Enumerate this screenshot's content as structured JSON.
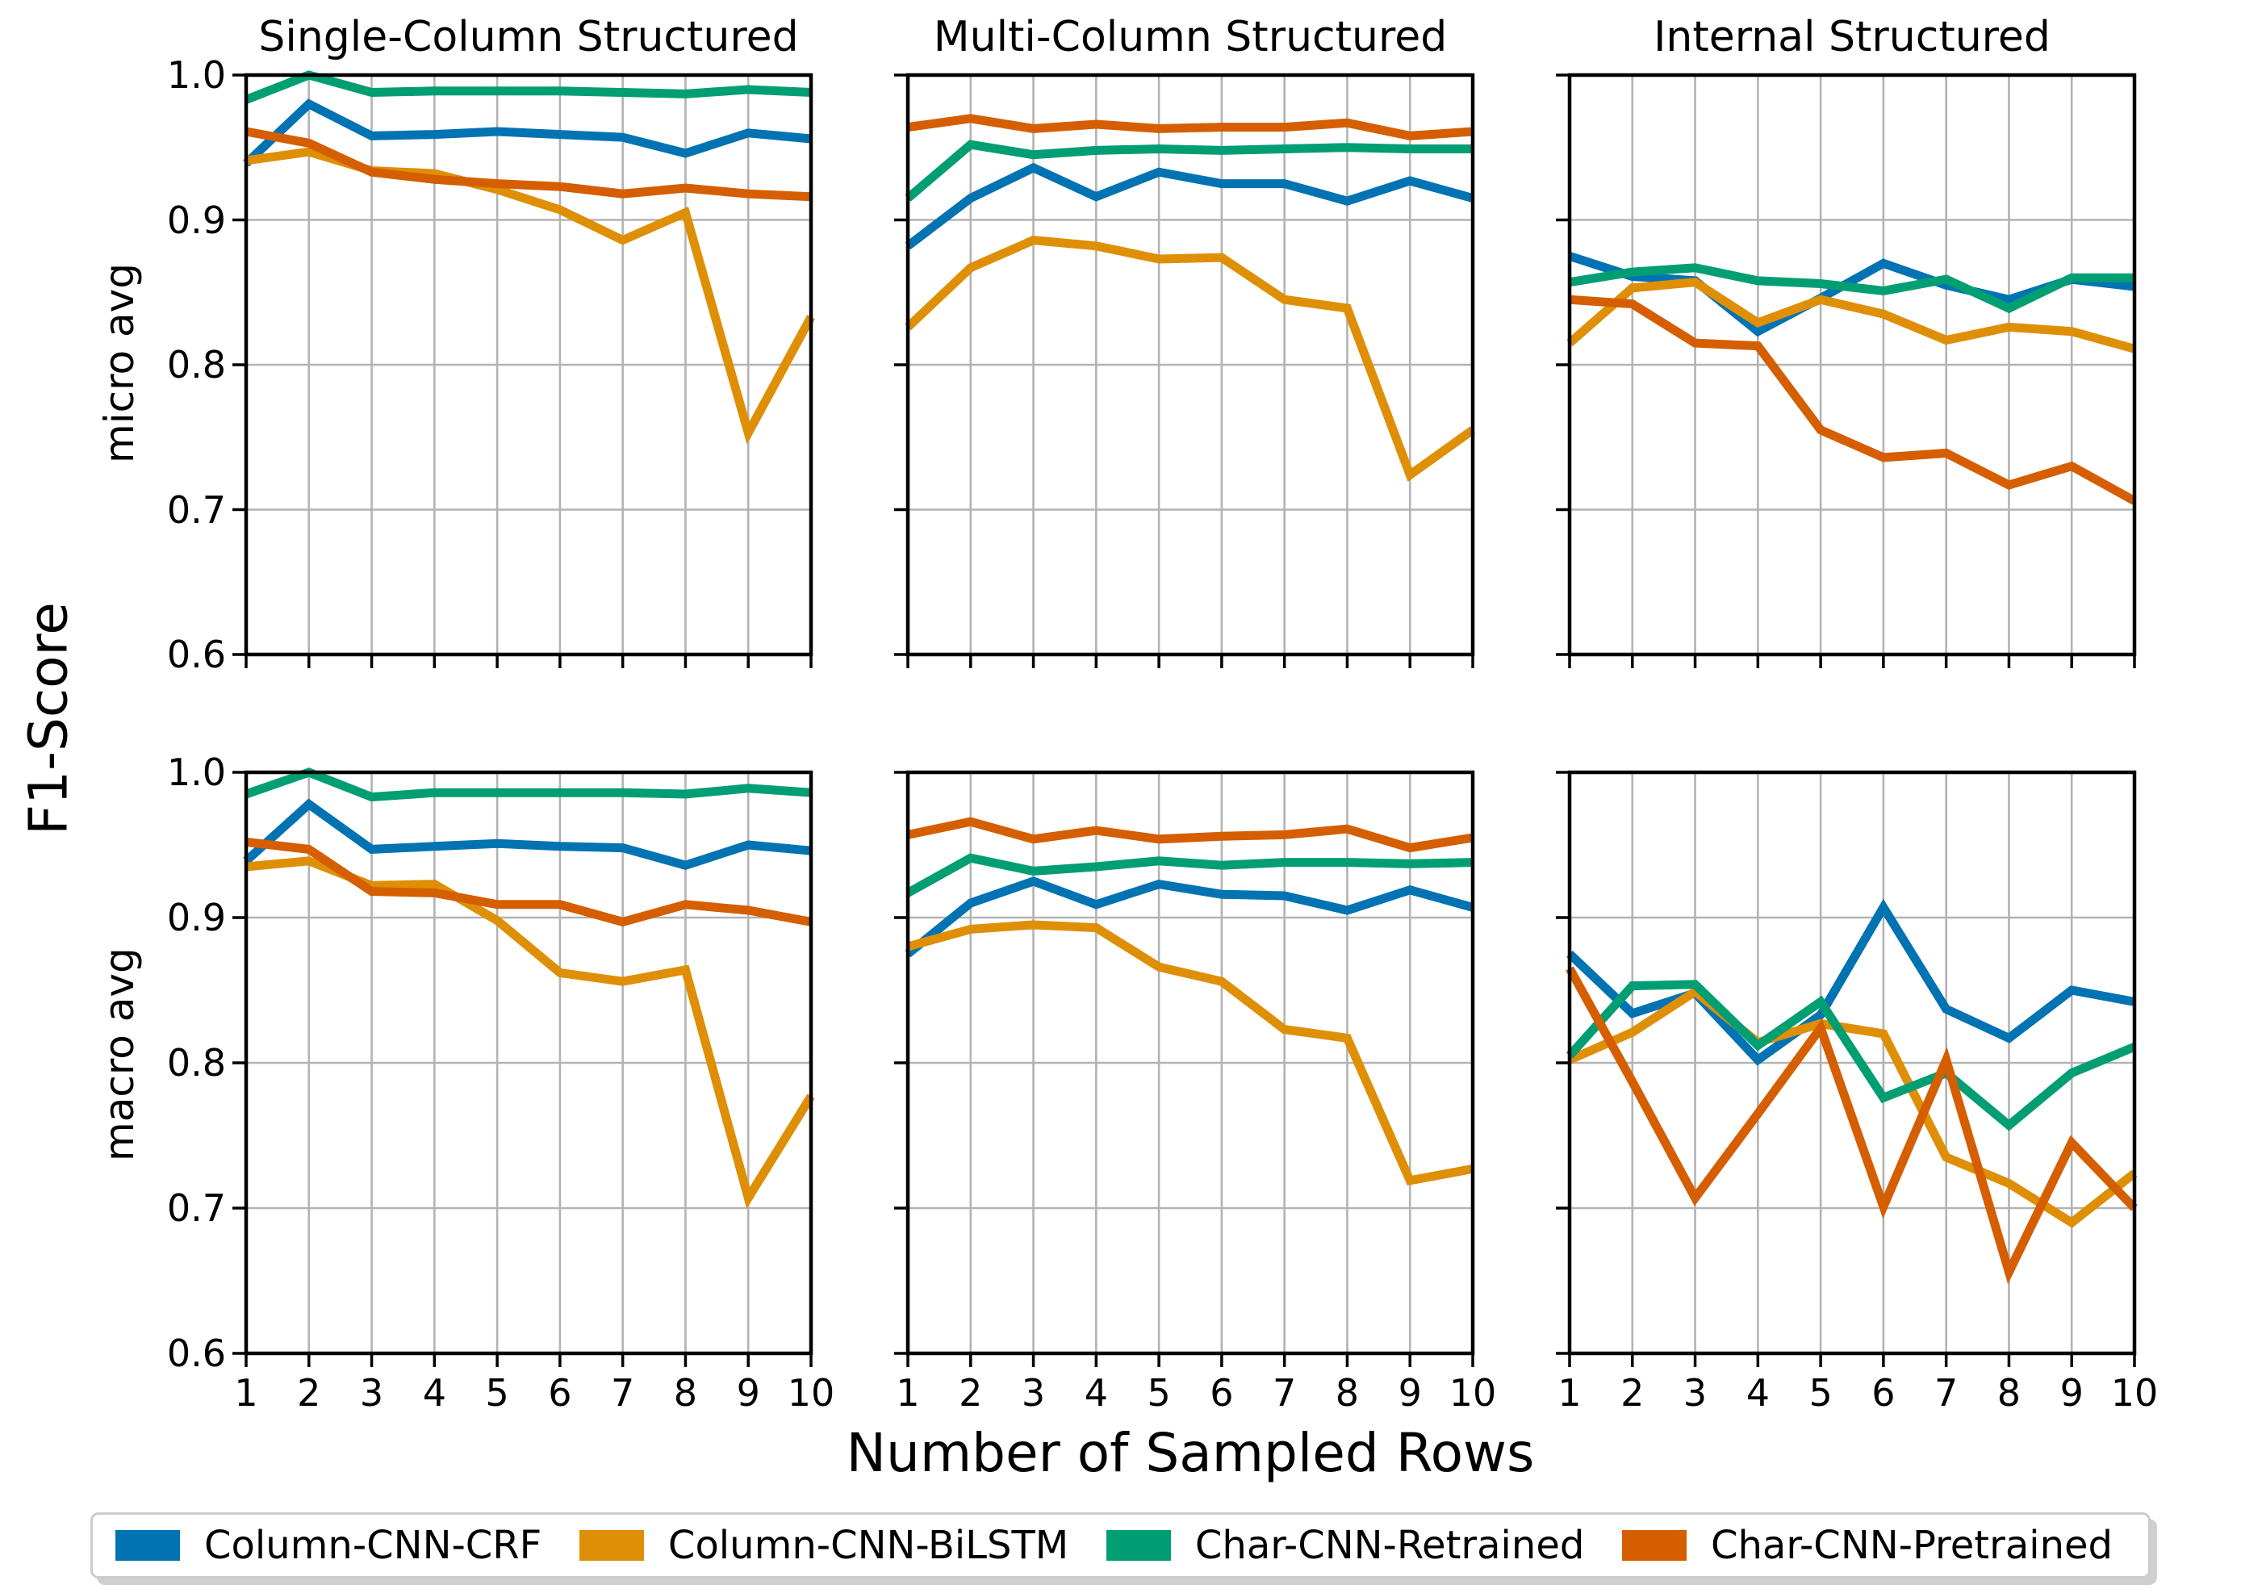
{
  "chart_data": {
    "type": "line",
    "col_titles": [
      "Single-Column Structured",
      "Multi-Column Structured",
      "Internal Structured"
    ],
    "row_labels": [
      "micro avg",
      "macro avg"
    ],
    "xlabel": "Number of Sampled Rows",
    "ylabel": "F1-Score",
    "x": [
      1,
      2,
      3,
      4,
      5,
      6,
      7,
      8,
      9,
      10
    ],
    "xtick_labels": [
      "1",
      "2",
      "3",
      "4",
      "5",
      "6",
      "7",
      "8",
      "9",
      "10"
    ],
    "ylim": [
      0.6,
      1.0
    ],
    "yticks": [
      1.0,
      0.9,
      0.8,
      0.7,
      0.6
    ],
    "ytick_labels": [
      "1.0",
      "0.9",
      "0.8",
      "0.7",
      "0.6"
    ],
    "grid": true,
    "legend_position": "bottom",
    "colors": {
      "grid": "#b3b3b3",
      "spine": "#000000",
      "background": "#ffffff",
      "legend_border": "#cccccc"
    },
    "series_meta": [
      {
        "name": "Column-CNN-CRF",
        "color": "#0173b2"
      },
      {
        "name": "Column-CNN-BiLSTM",
        "color": "#de8f05"
      },
      {
        "name": "Char-CNN-Retrained",
        "color": "#029e73"
      },
      {
        "name": "Char-CNN-Pretrained",
        "color": "#d55e00"
      }
    ],
    "subplots": [
      {
        "row": "micro avg",
        "col": "Single-Column Structured",
        "series": [
          {
            "name": "Column-CNN-CRF",
            "values": [
              0.939,
              0.98,
              0.958,
              0.959,
              0.961,
              0.959,
              0.957,
              0.946,
              0.96,
              0.956
            ]
          },
          {
            "name": "Column-CNN-BiLSTM",
            "values": [
              0.941,
              0.947,
              0.934,
              0.932,
              0.921,
              0.907,
              0.886,
              0.905,
              0.753,
              0.833
            ]
          },
          {
            "name": "Char-CNN-Retrained",
            "values": [
              0.983,
              1.0,
              0.988,
              0.989,
              0.989,
              0.989,
              0.988,
              0.987,
              0.99,
              0.988
            ]
          },
          {
            "name": "Char-CNN-Pretrained",
            "values": [
              0.961,
              0.953,
              0.933,
              0.928,
              0.925,
              0.923,
              0.918,
              0.922,
              0.918,
              0.916
            ]
          }
        ]
      },
      {
        "row": "micro avg",
        "col": "Multi-Column Structured",
        "series": [
          {
            "name": "Column-CNN-CRF",
            "values": [
              0.882,
              0.915,
              0.936,
              0.916,
              0.933,
              0.925,
              0.925,
              0.913,
              0.927,
              0.915
            ]
          },
          {
            "name": "Column-CNN-BiLSTM",
            "values": [
              0.826,
              0.867,
              0.886,
              0.882,
              0.873,
              0.874,
              0.845,
              0.839,
              0.724,
              0.755
            ]
          },
          {
            "name": "Char-CNN-Retrained",
            "values": [
              0.915,
              0.952,
              0.945,
              0.948,
              0.949,
              0.948,
              0.949,
              0.95,
              0.949,
              0.949
            ]
          },
          {
            "name": "Char-CNN-Pretrained",
            "values": [
              0.964,
              0.97,
              0.963,
              0.966,
              0.963,
              0.964,
              0.964,
              0.967,
              0.958,
              0.961
            ]
          }
        ]
      },
      {
        "row": "micro avg",
        "col": "Internal Structured",
        "series": [
          {
            "name": "Column-CNN-CRF",
            "values": [
              0.875,
              0.861,
              0.858,
              0.823,
              0.846,
              0.87,
              0.855,
              0.845,
              0.859,
              0.854
            ]
          },
          {
            "name": "Column-CNN-BiLSTM",
            "values": [
              0.815,
              0.853,
              0.857,
              0.829,
              0.845,
              0.835,
              0.817,
              0.826,
              0.823,
              0.811
            ]
          },
          {
            "name": "Char-CNN-Retrained",
            "values": [
              0.857,
              0.864,
              0.867,
              0.858,
              0.856,
              0.851,
              0.859,
              0.839,
              0.86,
              0.86
            ]
          },
          {
            "name": "Char-CNN-Pretrained",
            "values": [
              0.845,
              0.842,
              0.815,
              0.813,
              0.755,
              0.736,
              0.739,
              0.717,
              0.73,
              0.706
            ]
          }
        ]
      },
      {
        "row": "macro avg",
        "col": "Single-Column Structured",
        "series": [
          {
            "name": "Column-CNN-CRF",
            "values": [
              0.939,
              0.978,
              0.947,
              0.949,
              0.951,
              0.949,
              0.948,
              0.936,
              0.95,
              0.946
            ]
          },
          {
            "name": "Column-CNN-BiLSTM",
            "values": [
              0.935,
              0.939,
              0.922,
              0.923,
              0.898,
              0.862,
              0.856,
              0.864,
              0.707,
              0.777
            ]
          },
          {
            "name": "Char-CNN-Retrained",
            "values": [
              0.985,
              1.0,
              0.983,
              0.986,
              0.986,
              0.986,
              0.986,
              0.985,
              0.989,
              0.986
            ]
          },
          {
            "name": "Char-CNN-Pretrained",
            "values": [
              0.952,
              0.947,
              0.918,
              0.917,
              0.909,
              0.909,
              0.897,
              0.909,
              0.905,
              0.897
            ]
          }
        ]
      },
      {
        "row": "macro avg",
        "col": "Multi-Column Structured",
        "series": [
          {
            "name": "Column-CNN-CRF",
            "values": [
              0.875,
              0.91,
              0.925,
              0.909,
              0.923,
              0.916,
              0.915,
              0.905,
              0.919,
              0.907
            ]
          },
          {
            "name": "Column-CNN-BiLSTM",
            "values": [
              0.88,
              0.892,
              0.895,
              0.893,
              0.866,
              0.856,
              0.823,
              0.817,
              0.719,
              0.727
            ]
          },
          {
            "name": "Char-CNN-Retrained",
            "values": [
              0.917,
              0.941,
              0.932,
              0.935,
              0.939,
              0.936,
              0.938,
              0.938,
              0.937,
              0.938
            ]
          },
          {
            "name": "Char-CNN-Pretrained",
            "values": [
              0.957,
              0.966,
              0.954,
              0.96,
              0.954,
              0.956,
              0.957,
              0.961,
              0.948,
              0.955
            ]
          }
        ]
      },
      {
        "row": "macro avg",
        "col": "Internal Structured",
        "series": [
          {
            "name": "Column-CNN-CRF",
            "values": [
              0.875,
              0.834,
              0.848,
              0.802,
              0.833,
              0.907,
              0.837,
              0.817,
              0.85,
              0.842
            ]
          },
          {
            "name": "Column-CNN-BiLSTM",
            "values": [
              0.802,
              0.821,
              0.849,
              0.814,
              0.827,
              0.82,
              0.735,
              0.717,
              0.69,
              0.724
            ]
          },
          {
            "name": "Char-CNN-Retrained",
            "values": [
              0.805,
              0.853,
              0.854,
              0.812,
              0.842,
              0.776,
              0.793,
              0.757,
              0.793,
              0.811
            ]
          },
          {
            "name": "Char-CNN-Pretrained",
            "values": [
              0.865,
              0.787,
              0.707,
              0.765,
              0.824,
              0.701,
              0.802,
              0.656,
              0.745,
              0.7
            ]
          }
        ]
      }
    ]
  }
}
